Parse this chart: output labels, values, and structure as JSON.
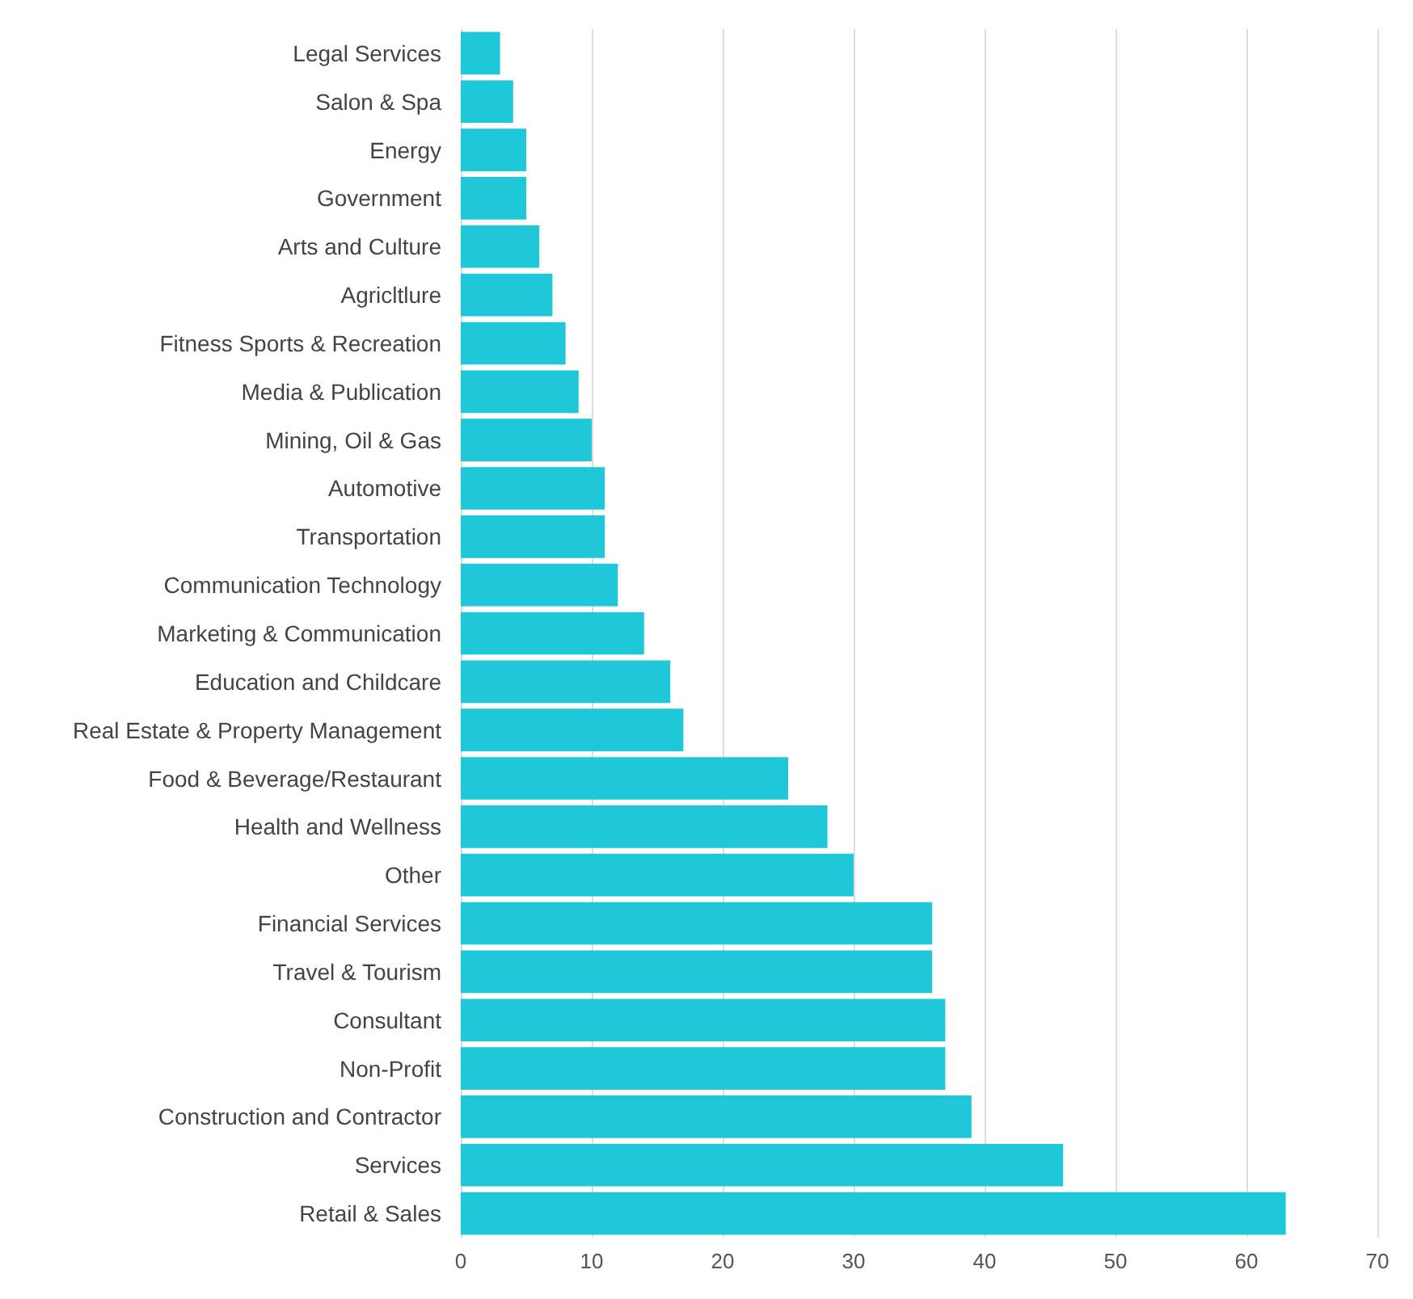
{
  "chart_data": {
    "type": "bar",
    "orientation": "horizontal",
    "categories": [
      "Legal Services",
      "Salon & Spa",
      "Energy",
      "Government",
      "Arts and Culture",
      "Agricltlure",
      "Fitness Sports & Recreation",
      "Media & Publication",
      "Mining, Oil & Gas",
      "Automotive",
      "Transportation",
      "Communication Technology",
      "Marketing & Communication",
      "Education and Childcare",
      "Real Estate & Property Management",
      "Food & Beverage/Restaurant",
      "Health and Wellness",
      "Other",
      "Financial Services",
      "Travel & Tourism",
      "Consultant",
      "Non-Profit",
      "Construction and Contractor",
      "Services",
      "Retail & Sales"
    ],
    "values": [
      3,
      4,
      5,
      5,
      6,
      7,
      8,
      9,
      10,
      11,
      11,
      12,
      14,
      16,
      17,
      25,
      28,
      30,
      36,
      36,
      37,
      37,
      39,
      46,
      63
    ],
    "color": "#1ec8d8",
    "xlim": [
      0,
      70
    ],
    "xticks": [
      0,
      10,
      20,
      30,
      40,
      50,
      60,
      70
    ],
    "grid": "x"
  }
}
